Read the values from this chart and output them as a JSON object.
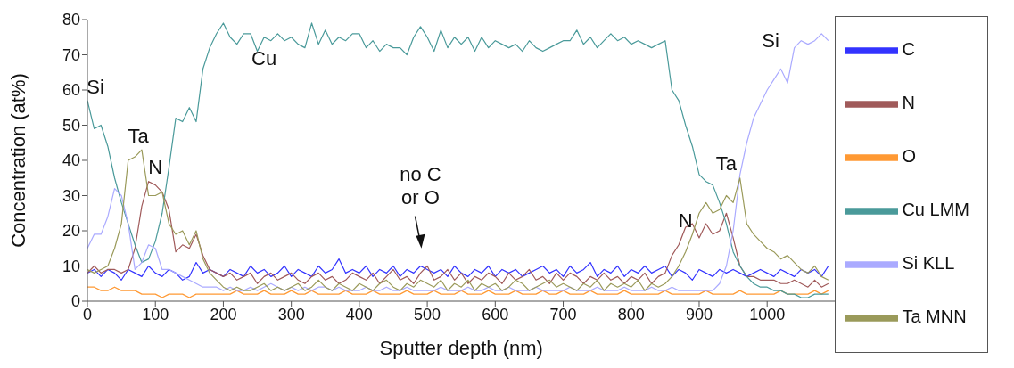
{
  "chart_data": {
    "type": "line",
    "xlabel": "Sputter depth (nm)",
    "ylabel": "Concentration (at%)",
    "x": [
      0,
      10,
      20,
      30,
      40,
      50,
      60,
      70,
      80,
      90,
      100,
      110,
      120,
      130,
      140,
      150,
      160,
      170,
      180,
      190,
      200,
      210,
      220,
      230,
      240,
      250,
      260,
      270,
      280,
      290,
      300,
      310,
      320,
      330,
      340,
      350,
      360,
      370,
      380,
      390,
      400,
      410,
      420,
      430,
      440,
      450,
      460,
      470,
      480,
      490,
      500,
      510,
      520,
      530,
      540,
      550,
      560,
      570,
      580,
      590,
      600,
      610,
      620,
      630,
      640,
      650,
      660,
      670,
      680,
      690,
      700,
      710,
      720,
      730,
      740,
      750,
      760,
      770,
      780,
      790,
      800,
      810,
      820,
      830,
      840,
      850,
      860,
      870,
      880,
      890,
      900,
      910,
      920,
      930,
      940,
      950,
      960,
      970,
      980,
      990,
      1000,
      1010,
      1020,
      1030,
      1040,
      1050,
      1060,
      1070,
      1080,
      1090
    ],
    "series": [
      {
        "name": "C",
        "color": "#3333ff",
        "values": [
          8,
          9,
          7,
          9,
          8,
          6,
          9,
          8,
          7,
          10,
          8,
          7,
          9,
          8,
          6,
          7,
          11,
          8,
          9,
          8,
          7,
          9,
          8,
          7,
          10,
          8,
          9,
          7,
          8,
          10,
          7,
          9,
          8,
          7,
          10,
          8,
          9,
          12,
          8,
          9,
          8,
          10,
          7,
          9,
          8,
          10,
          7,
          9,
          8,
          10,
          9,
          8,
          9,
          7,
          10,
          8,
          7,
          9,
          8,
          10,
          7,
          9,
          8,
          9,
          7,
          8,
          9,
          10,
          8,
          9,
          7,
          10,
          8,
          9,
          11,
          7,
          9,
          8,
          10,
          7,
          9,
          8,
          10,
          8,
          9,
          10,
          7,
          9,
          8,
          6,
          9,
          8,
          7,
          9,
          8,
          9,
          8,
          7,
          8,
          9,
          8,
          7,
          9,
          8,
          7,
          9,
          8,
          9,
          7,
          10
        ]
      },
      {
        "name": "N",
        "color": "#a05a5a",
        "values": [
          8,
          10,
          8,
          9,
          9,
          8,
          9,
          15,
          27,
          34,
          33,
          31,
          26,
          14,
          16,
          15,
          19,
          13,
          9,
          8,
          7,
          8,
          6,
          7,
          8,
          5,
          7,
          8,
          6,
          7,
          8,
          6,
          5,
          7,
          8,
          6,
          7,
          5,
          6,
          8,
          7,
          6,
          8,
          5,
          7,
          9,
          6,
          7,
          5,
          8,
          10,
          6,
          7,
          9,
          6,
          8,
          5,
          7,
          6,
          8,
          7,
          5,
          8,
          6,
          7,
          9,
          6,
          7,
          5,
          8,
          6,
          8,
          7,
          5,
          7,
          6,
          8,
          6,
          7,
          5,
          7,
          6,
          8,
          5,
          7,
          8,
          13,
          16,
          21,
          22,
          18,
          22,
          19,
          20,
          25,
          18,
          10,
          7,
          7,
          6,
          6,
          6,
          5,
          5,
          6,
          5,
          4,
          6,
          4,
          5
        ]
      },
      {
        "name": "O",
        "color": "#ff9933",
        "values": [
          4,
          4,
          3,
          3,
          4,
          3,
          3,
          3,
          2,
          2,
          2,
          1,
          2,
          2,
          2,
          1,
          2,
          2,
          2,
          2,
          2,
          2,
          3,
          2,
          2,
          2,
          3,
          2,
          2,
          2,
          3,
          2,
          2,
          3,
          2,
          2,
          2,
          2,
          3,
          2,
          2,
          2,
          3,
          2,
          2,
          2,
          2,
          3,
          2,
          2,
          2,
          3,
          2,
          2,
          2,
          3,
          2,
          2,
          2,
          3,
          2,
          2,
          2,
          3,
          2,
          2,
          2,
          3,
          2,
          2,
          3,
          2,
          2,
          2,
          3,
          2,
          2,
          2,
          2,
          3,
          2,
          2,
          2,
          2,
          2,
          3,
          2,
          2,
          2,
          2,
          2,
          3,
          2,
          2,
          2,
          2,
          3,
          2,
          2,
          2,
          2,
          2,
          3,
          2,
          2,
          2,
          2,
          3,
          2,
          3
        ]
      },
      {
        "name": "Cu LMM",
        "color": "#4a9a9a",
        "values": [
          57,
          49,
          50,
          44,
          35,
          28,
          22,
          16,
          11,
          12,
          17,
          25,
          38,
          52,
          51,
          55,
          51,
          66,
          72,
          76,
          79,
          75,
          73,
          76,
          76,
          71,
          75,
          74,
          76,
          74,
          75,
          73,
          72,
          79,
          73,
          77,
          73,
          75,
          74,
          76,
          76,
          72,
          74,
          71,
          73,
          72,
          72,
          70,
          75,
          78,
          75,
          71,
          77,
          72,
          75,
          73,
          75,
          71,
          75,
          72,
          74,
          73,
          72,
          73,
          71,
          74,
          72,
          71,
          72,
          73,
          74,
          74,
          77,
          73,
          75,
          72,
          74,
          76,
          74,
          75,
          73,
          74,
          73,
          72,
          73,
          74,
          60,
          57,
          50,
          44,
          36,
          34,
          33,
          28,
          22,
          14,
          10,
          7,
          5,
          4,
          4,
          3,
          3,
          2,
          2,
          1,
          1,
          2,
          2,
          2
        ]
      },
      {
        "name": "Si KLL",
        "color": "#aaaaff",
        "values": [
          15,
          19,
          19,
          24,
          32,
          30,
          22,
          9,
          11,
          16,
          15,
          9,
          9,
          8,
          7,
          6,
          5,
          4,
          4,
          4,
          3,
          4,
          3,
          3,
          4,
          3,
          4,
          5,
          4,
          3,
          4,
          3,
          4,
          3,
          4,
          4,
          3,
          4,
          3,
          3,
          3,
          4,
          3,
          3,
          4,
          3,
          3,
          4,
          3,
          3,
          3,
          3,
          4,
          3,
          3,
          3,
          4,
          3,
          3,
          4,
          3,
          3,
          4,
          3,
          3,
          3,
          4,
          3,
          3,
          3,
          3,
          4,
          3,
          3,
          3,
          4,
          3,
          3,
          3,
          4,
          3,
          3,
          3,
          4,
          3,
          3,
          4,
          3,
          3,
          3,
          3,
          3,
          3,
          5,
          10,
          20,
          36,
          45,
          52,
          56,
          60,
          63,
          66,
          62,
          72,
          74,
          73,
          74,
          76,
          74
        ]
      },
      {
        "name": "Ta MNN",
        "color": "#9a9a5a",
        "values": [
          9,
          8,
          9,
          10,
          15,
          22,
          40,
          41,
          43,
          30,
          30,
          31,
          22,
          19,
          20,
          16,
          20,
          12,
          8,
          6,
          4,
          3,
          4,
          3,
          3,
          4,
          5,
          3,
          4,
          3,
          4,
          5,
          3,
          4,
          6,
          4,
          3,
          5,
          4,
          3,
          5,
          4,
          3,
          5,
          6,
          4,
          3,
          5,
          4,
          6,
          5,
          4,
          6,
          3,
          5,
          4,
          6,
          3,
          5,
          4,
          5,
          3,
          4,
          6,
          5,
          3,
          4,
          5,
          6,
          4,
          5,
          4,
          3,
          5,
          4,
          6,
          3,
          5,
          4,
          5,
          4,
          6,
          3,
          5,
          4,
          5,
          7,
          10,
          14,
          19,
          25,
          28,
          25,
          26,
          30,
          28,
          35,
          22,
          19,
          17,
          15,
          14,
          12,
          13,
          11,
          9,
          8,
          10,
          7,
          6
        ]
      }
    ],
    "xlim": [
      0,
      1100
    ],
    "xticks": [
      0,
      100,
      200,
      300,
      400,
      500,
      600,
      700,
      800,
      900,
      1000
    ],
    "ylim": [
      0,
      80
    ],
    "yticks": [
      0,
      10,
      20,
      30,
      40,
      50,
      60,
      70,
      80
    ],
    "grid": false,
    "legend": "right",
    "marker": "none",
    "line_style": "solid",
    "annotations": [
      "Si",
      "Cu",
      "Ta",
      "N",
      "no C\nor O",
      "N",
      "Ta",
      "Si"
    ]
  }
}
